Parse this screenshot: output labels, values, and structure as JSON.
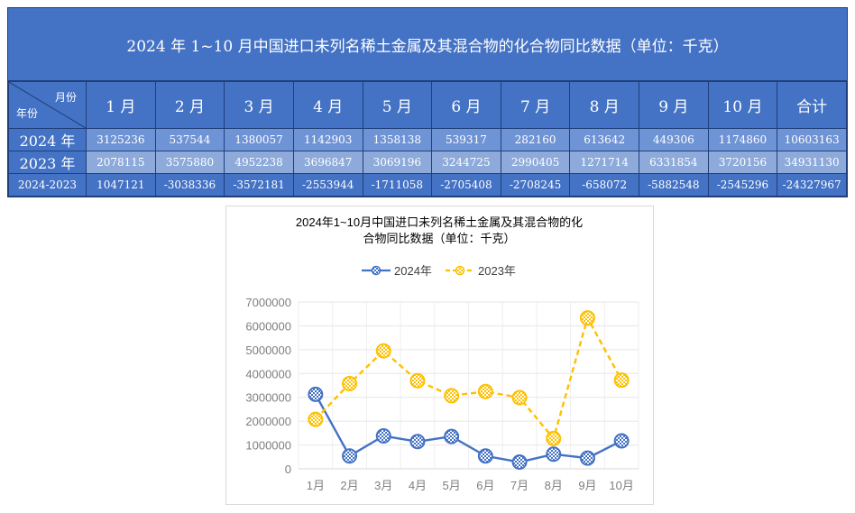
{
  "table": {
    "title": "2024 年 1~10 月中国进口未列名稀土金属及其混合物的化合物同比数据（单位：千克）",
    "corner_top": "月份",
    "corner_bottom": "年份",
    "headers": [
      "1 月",
      "2 月",
      "3 月",
      "4 月",
      "5 月",
      "6 月",
      "7 月",
      "8 月",
      "9 月",
      "10 月",
      "合计"
    ],
    "rows": [
      {
        "label": "2024 年",
        "values": [
          "3125236",
          "537544",
          "1380057",
          "1142903",
          "1358138",
          "539317",
          "282160",
          "613642",
          "449306",
          "1174860",
          "10603163"
        ]
      },
      {
        "label": "2023 年",
        "values": [
          "2078115",
          "3575880",
          "4952238",
          "3696847",
          "3069196",
          "3244725",
          "2990405",
          "1271714",
          "6331854",
          "3720156",
          "34931130"
        ]
      },
      {
        "label": "2024-2023",
        "values": [
          "1047121",
          "-3038336",
          "-3572181",
          "-2553944",
          "-1711058",
          "-2705408",
          "-2708245",
          "-658072",
          "-5882548",
          "-2545296",
          "-24327967"
        ]
      }
    ]
  },
  "chart_data": {
    "type": "line",
    "title_line1": "2024年1~10月中国进口未列名稀土金属及其混合物的化",
    "title_line2": "合物同比数据（单位：千克）",
    "categories": [
      "1月",
      "2月",
      "3月",
      "4月",
      "5月",
      "6月",
      "7月",
      "8月",
      "9月",
      "10月"
    ],
    "series": [
      {
        "name": "2024年",
        "color": "#4472c4",
        "dash": false,
        "values": [
          3125236,
          537544,
          1380057,
          1142903,
          1358138,
          539317,
          282160,
          613642,
          449306,
          1174860
        ]
      },
      {
        "name": "2023年",
        "color": "#ffc000",
        "dash": true,
        "values": [
          2078115,
          3575880,
          4952238,
          3696847,
          3069196,
          3244725,
          2990405,
          1271714,
          6331854,
          3720156
        ]
      }
    ],
    "yticks": [
      "0",
      "1000000",
      "2000000",
      "3000000",
      "4000000",
      "5000000",
      "6000000",
      "7000000"
    ],
    "ylim": [
      0,
      7000000
    ],
    "grid": true,
    "legend_position": "top"
  }
}
